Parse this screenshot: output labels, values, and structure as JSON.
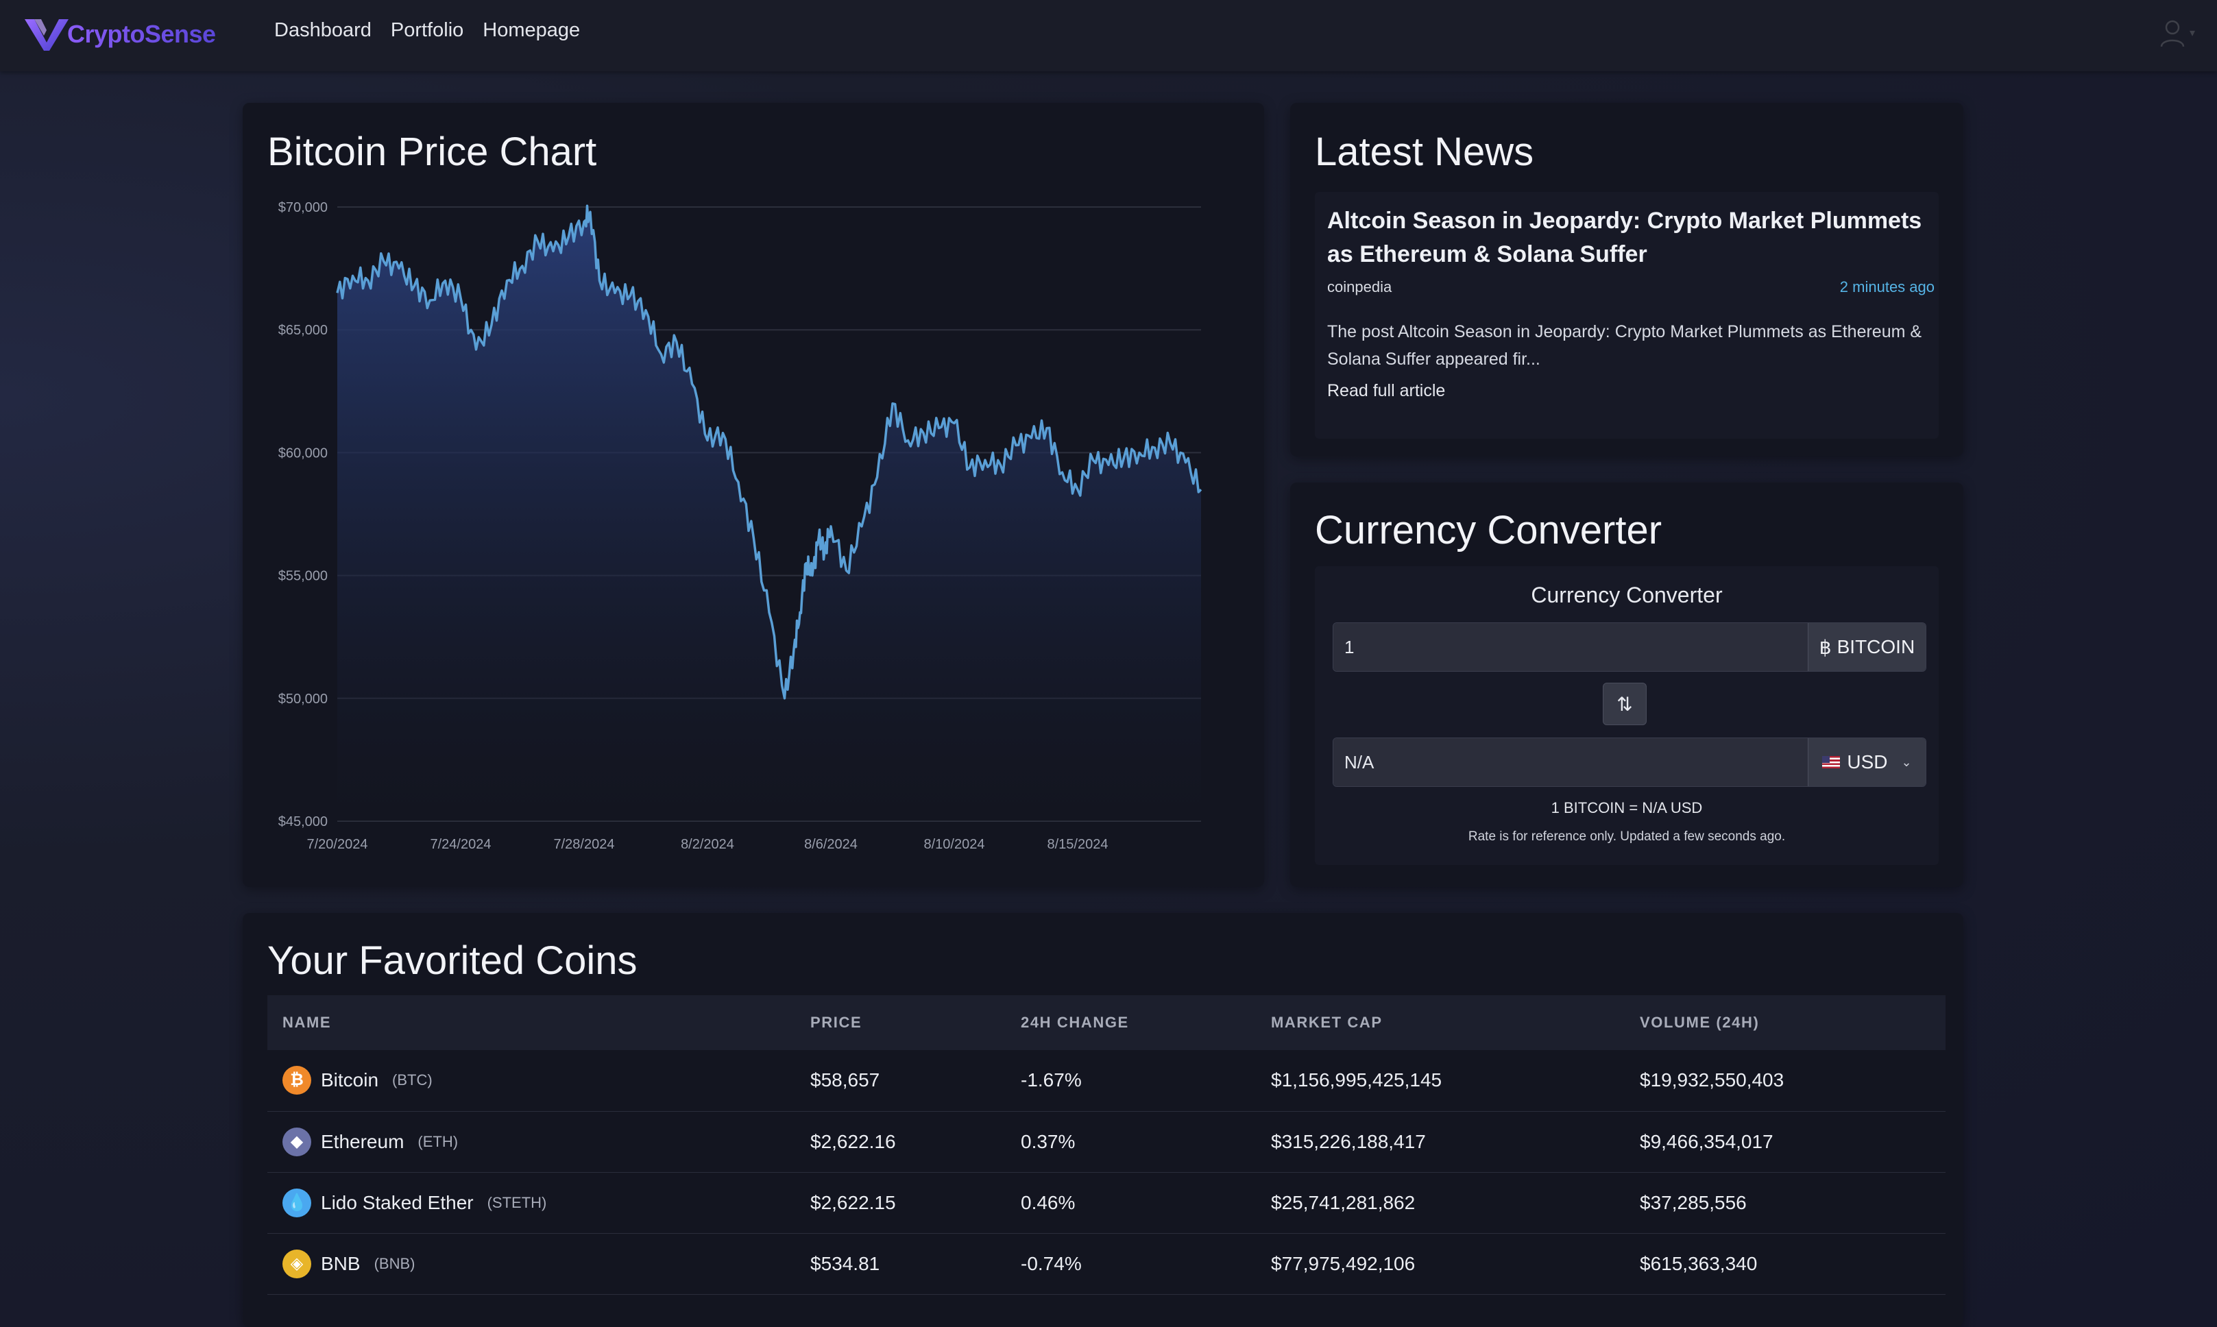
{
  "nav": {
    "brand": "CryptoSense",
    "links": [
      "Dashboard",
      "Portfolio",
      "Homepage"
    ],
    "logo_icon": "v-logo-icon",
    "user_icon": "user-icon"
  },
  "price_chart": {
    "card_title": "Bitcoin Price Chart"
  },
  "news": {
    "card_title": "Latest News",
    "headline": "Altcoin Season in Jeopardy: Crypto Market Plummets as Ethereum & Solana Suffer",
    "source": "coinpedia",
    "time": "2 minutes ago",
    "description": "The post Altcoin Season in Jeopardy: Crypto Market Plummets as Ethereum & Solana Suffer appeared fir...",
    "link": "Read full article"
  },
  "converter": {
    "card_title": "Currency Converter",
    "heading": "Currency Converter",
    "from_value": "1",
    "from_currency": "BITCOIN",
    "from_symbol": "฿",
    "to_value": "N/A",
    "to_currency": "USD",
    "rate_line": "1 BITCOIN = N/A USD",
    "rate_note": "Rate is for reference only. Updated a few seconds ago.",
    "swap_icon": "swap-vertical-icon"
  },
  "favorites": {
    "card_title": "Your Favorited Coins",
    "columns": [
      "NAME",
      "PRICE",
      "24H CHANGE",
      "MARKET CAP",
      "VOLUME (24H)"
    ],
    "rows": [
      {
        "name": "Bitcoin",
        "symbol": "(BTC)",
        "price": "$58,657",
        "change": "-1.67%",
        "market_cap": "$1,156,995,425,145",
        "volume": "$19,932,550,403",
        "icon_color": "#f0892a",
        "icon_glyph": "₿"
      },
      {
        "name": "Ethereum",
        "symbol": "(ETH)",
        "price": "$2,622.16",
        "change": "0.37%",
        "market_cap": "$315,226,188,417",
        "volume": "$9,466,354,017",
        "icon_color": "#6b72a8",
        "icon_glyph": "◆"
      },
      {
        "name": "Lido Staked Ether",
        "symbol": "(STETH)",
        "price": "$2,622.15",
        "change": "0.46%",
        "market_cap": "$25,741,281,862",
        "volume": "$37,285,556",
        "icon_color": "#4aa8f0",
        "icon_glyph": "💧"
      },
      {
        "name": "BNB",
        "symbol": "(BNB)",
        "price": "$534.81",
        "change": "-0.74%",
        "market_cap": "$77,975,492,106",
        "volume": "$615,363,340",
        "icon_color": "#e8b52a",
        "icon_glyph": "◈"
      }
    ]
  },
  "colors": {
    "line": "#5a9fd6",
    "area_top": "#2a3f7a",
    "positive": "#5fbf62",
    "negative": "#e2504f",
    "accent": "#56b4e6"
  },
  "chart_data": {
    "type": "area",
    "title": "",
    "xlabel": "",
    "ylabel": "",
    "ylim": [
      45000,
      70000
    ],
    "y_ticks": [
      "$45,000",
      "$50,000",
      "$55,000",
      "$60,000",
      "$65,000",
      "$70,000"
    ],
    "y_tick_values": [
      45000,
      50000,
      55000,
      60000,
      65000,
      70000
    ],
    "x_ticks": [
      "7/20/2024",
      "7/24/2024",
      "7/28/2024",
      "8/2/2024",
      "8/6/2024",
      "8/10/2024",
      "8/15/2024"
    ],
    "x_tick_days": [
      0,
      4,
      8,
      12,
      16,
      20,
      24
    ],
    "x_range_days": [
      0,
      28
    ],
    "grid": true,
    "series": [
      {
        "values_x_days": [
          0,
          0.5,
          1,
          1.5,
          2,
          2.5,
          3,
          3.5,
          4,
          4.5,
          5,
          5.5,
          6,
          6.5,
          7,
          7.5,
          8,
          8.2,
          8.5,
          9,
          9.5,
          10,
          10.5,
          11,
          11.5,
          12,
          12.5,
          13,
          13.5,
          14,
          14.5,
          14.8,
          15,
          15.2,
          15.4,
          15.6,
          15.8,
          16,
          16.5,
          17,
          17.5,
          18,
          18.5,
          19,
          19.5,
          20,
          20.5,
          21,
          21.5,
          22,
          22.5,
          23,
          23.5,
          24,
          24.5,
          25,
          25.5,
          26,
          26.5,
          27,
          27.5,
          28
        ],
        "values_y": [
          66500,
          67200,
          67000,
          67800,
          67500,
          66800,
          66200,
          67000,
          66300,
          64200,
          65200,
          67000,
          67600,
          68600,
          68200,
          68800,
          69400,
          69800,
          67000,
          66500,
          66400,
          65800,
          64000,
          64500,
          62800,
          60500,
          60800,
          58800,
          56500,
          53500,
          50000,
          52000,
          53500,
          55500,
          55000,
          56500,
          56000,
          57000,
          55200,
          57000,
          59000,
          62000,
          60500,
          60800,
          61000,
          61200,
          59400,
          59700,
          59500,
          60300,
          60600,
          61000,
          59200,
          58500,
          59700,
          59500,
          59800,
          60000,
          60200,
          60400,
          59600,
          58500
        ]
      }
    ]
  }
}
